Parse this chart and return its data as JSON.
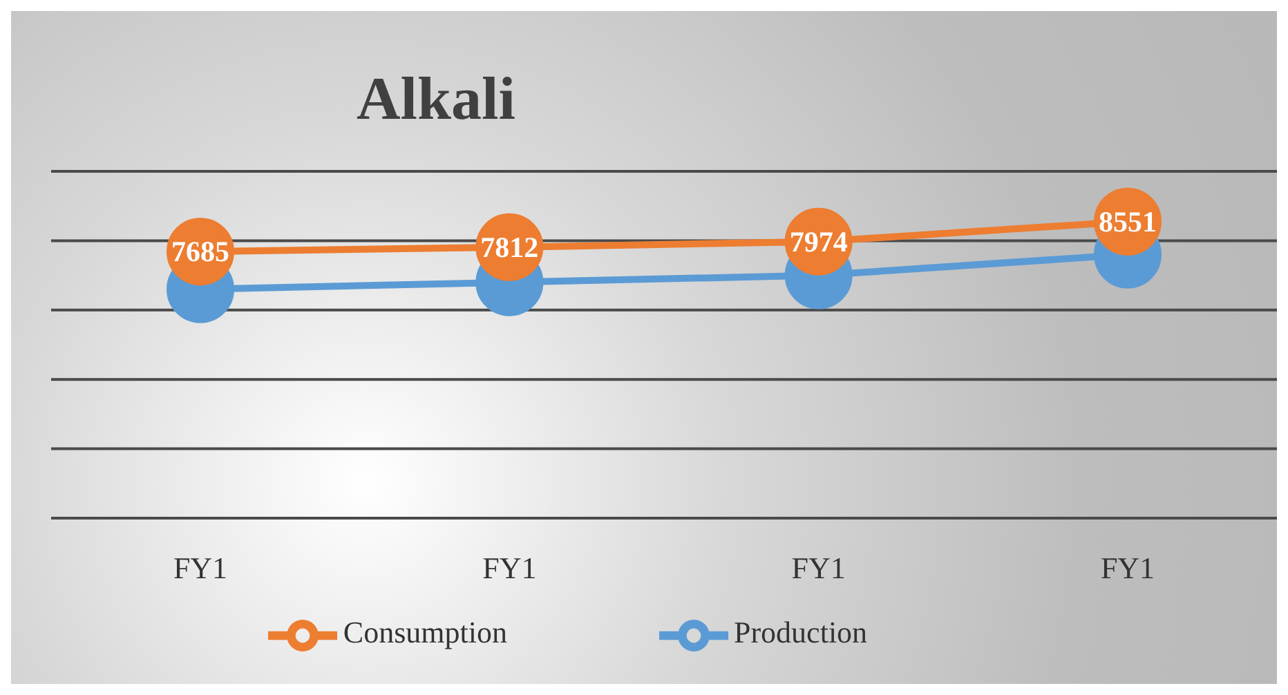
{
  "chart_data": {
    "type": "line",
    "title": "Alkali",
    "categories": [
      "FY1",
      "FY1",
      "FY1",
      "FY1"
    ],
    "series": [
      {
        "name": "Production",
        "color": "#5b9bd5",
        "values": [
          6600,
          6800,
          7000,
          7600
        ]
      },
      {
        "name": "Consumption",
        "color": "#ed7d31",
        "values": [
          7685,
          7812,
          7974,
          8551
        ],
        "value_labels": [
          "7685",
          "7812",
          "7974",
          "8551"
        ]
      }
    ],
    "ylim": [
      0,
      10000
    ],
    "yticks": [
      {
        "value": 0,
        "label": null
      },
      {
        "value": 2000,
        "label": null
      },
      {
        "value": 4000,
        "label": null
      },
      {
        "value": 6000,
        "label": null
      },
      {
        "value": 8000,
        "label": null
      },
      {
        "value": 10000,
        "label": null
      }
    ],
    "grid": "y",
    "tick_labels": "x",
    "legend": "bottom",
    "marker": "circle",
    "line_style": "solid"
  }
}
